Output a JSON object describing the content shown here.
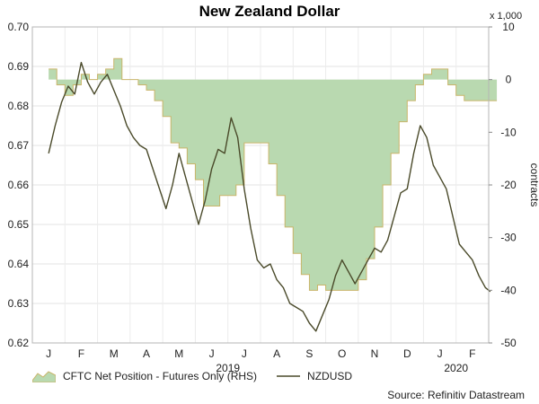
{
  "chart_data": {
    "type": "line",
    "title": "New Zealand Dollar",
    "y_left": {
      "range": [
        0.62,
        0.7
      ],
      "ticks": [
        "0.62",
        "0.63",
        "0.64",
        "0.65",
        "0.66",
        "0.67",
        "0.68",
        "0.69",
        "0.70"
      ]
    },
    "y_right": {
      "range": [
        -50,
        10
      ],
      "ticks": [
        "-50",
        "-40",
        "-30",
        "-20",
        "-10",
        "0",
        "10"
      ],
      "unit_label": "x 1,000",
      "label": "contracts"
    },
    "x_axis": {
      "months": [
        "J",
        "F",
        "M",
        "A",
        "M",
        "J",
        "J",
        "A",
        "S",
        "O",
        "N",
        "D",
        "J",
        "F"
      ],
      "years": [
        {
          "label": "2019",
          "month_index": 5.5
        },
        {
          "label": "2020",
          "month_index": 12.5
        }
      ]
    },
    "legend": [
      {
        "name": "CFTC Net Position - Futures Only (RHS)",
        "style": "area",
        "color": "#b9d9b0"
      },
      {
        "name": "NZDUSD",
        "style": "line",
        "color": "#4a4a2a"
      }
    ],
    "source": "Source: Refinitiv Datastream",
    "series": [
      {
        "name": "CFTC Net Position - Futures Only (RHS)",
        "axis": "right",
        "x_month": [
          0,
          0.25,
          0.5,
          0.75,
          1,
          1.25,
          1.5,
          1.75,
          2,
          2.25,
          2.5,
          2.75,
          3,
          3.25,
          3.5,
          3.75,
          4,
          4.25,
          4.5,
          4.75,
          5,
          5.25,
          5.5,
          5.75,
          6,
          6.25,
          6.5,
          6.75,
          7,
          7.25,
          7.5,
          7.75,
          8,
          8.25,
          8.5,
          8.75,
          9,
          9.25,
          9.5,
          9.75,
          10,
          10.25,
          10.5,
          10.75,
          11,
          11.25,
          11.5,
          11.75,
          12,
          12.25,
          12.5,
          12.75,
          13,
          13.25,
          13.5
        ],
        "values": [
          2,
          -1,
          -3,
          -1,
          1,
          0,
          1,
          2,
          4,
          0,
          0,
          -1,
          -2,
          -4,
          -7,
          -12,
          -13,
          -16,
          -19,
          -24,
          -24,
          -22,
          -22,
          -20,
          -12,
          -12,
          -12,
          -16,
          -22,
          -28,
          -33,
          -37,
          -40,
          -39,
          -40,
          -40,
          -40,
          -40,
          -38,
          -34,
          -28,
          -20,
          -14,
          -8,
          -4,
          -1,
          1,
          2,
          2,
          -1,
          -3,
          -4,
          -4,
          -4,
          -4
        ]
      },
      {
        "name": "NZDUSD",
        "axis": "left",
        "x_month": [
          0,
          0.2,
          0.4,
          0.6,
          0.8,
          1,
          1.2,
          1.4,
          1.6,
          1.8,
          2,
          2.2,
          2.4,
          2.6,
          2.8,
          3,
          3.2,
          3.4,
          3.6,
          3.8,
          4,
          4.2,
          4.4,
          4.6,
          4.8,
          5,
          5.2,
          5.4,
          5.6,
          5.8,
          6,
          6.2,
          6.4,
          6.6,
          6.8,
          7,
          7.2,
          7.4,
          7.6,
          7.8,
          8,
          8.2,
          8.4,
          8.6,
          8.8,
          9,
          9.2,
          9.4,
          9.6,
          9.8,
          10,
          10.2,
          10.4,
          10.6,
          10.8,
          11,
          11.2,
          11.4,
          11.6,
          11.8,
          12,
          12.2,
          12.4,
          12.6,
          12.8,
          13,
          13.2,
          13.4,
          13.55
        ],
        "values": [
          0.668,
          0.675,
          0.681,
          0.685,
          0.683,
          0.691,
          0.686,
          0.683,
          0.686,
          0.688,
          0.684,
          0.68,
          0.675,
          0.672,
          0.67,
          0.669,
          0.664,
          0.659,
          0.654,
          0.66,
          0.668,
          0.662,
          0.656,
          0.65,
          0.656,
          0.664,
          0.669,
          0.668,
          0.677,
          0.672,
          0.659,
          0.649,
          0.641,
          0.639,
          0.64,
          0.636,
          0.634,
          0.63,
          0.629,
          0.628,
          0.625,
          0.623,
          0.627,
          0.631,
          0.637,
          0.641,
          0.638,
          0.635,
          0.638,
          0.641,
          0.644,
          0.643,
          0.646,
          0.652,
          0.658,
          0.659,
          0.668,
          0.675,
          0.672,
          0.665,
          0.662,
          0.659,
          0.652,
          0.645,
          0.643,
          0.641,
          0.637,
          0.634,
          0.633
        ]
      }
    ]
  }
}
